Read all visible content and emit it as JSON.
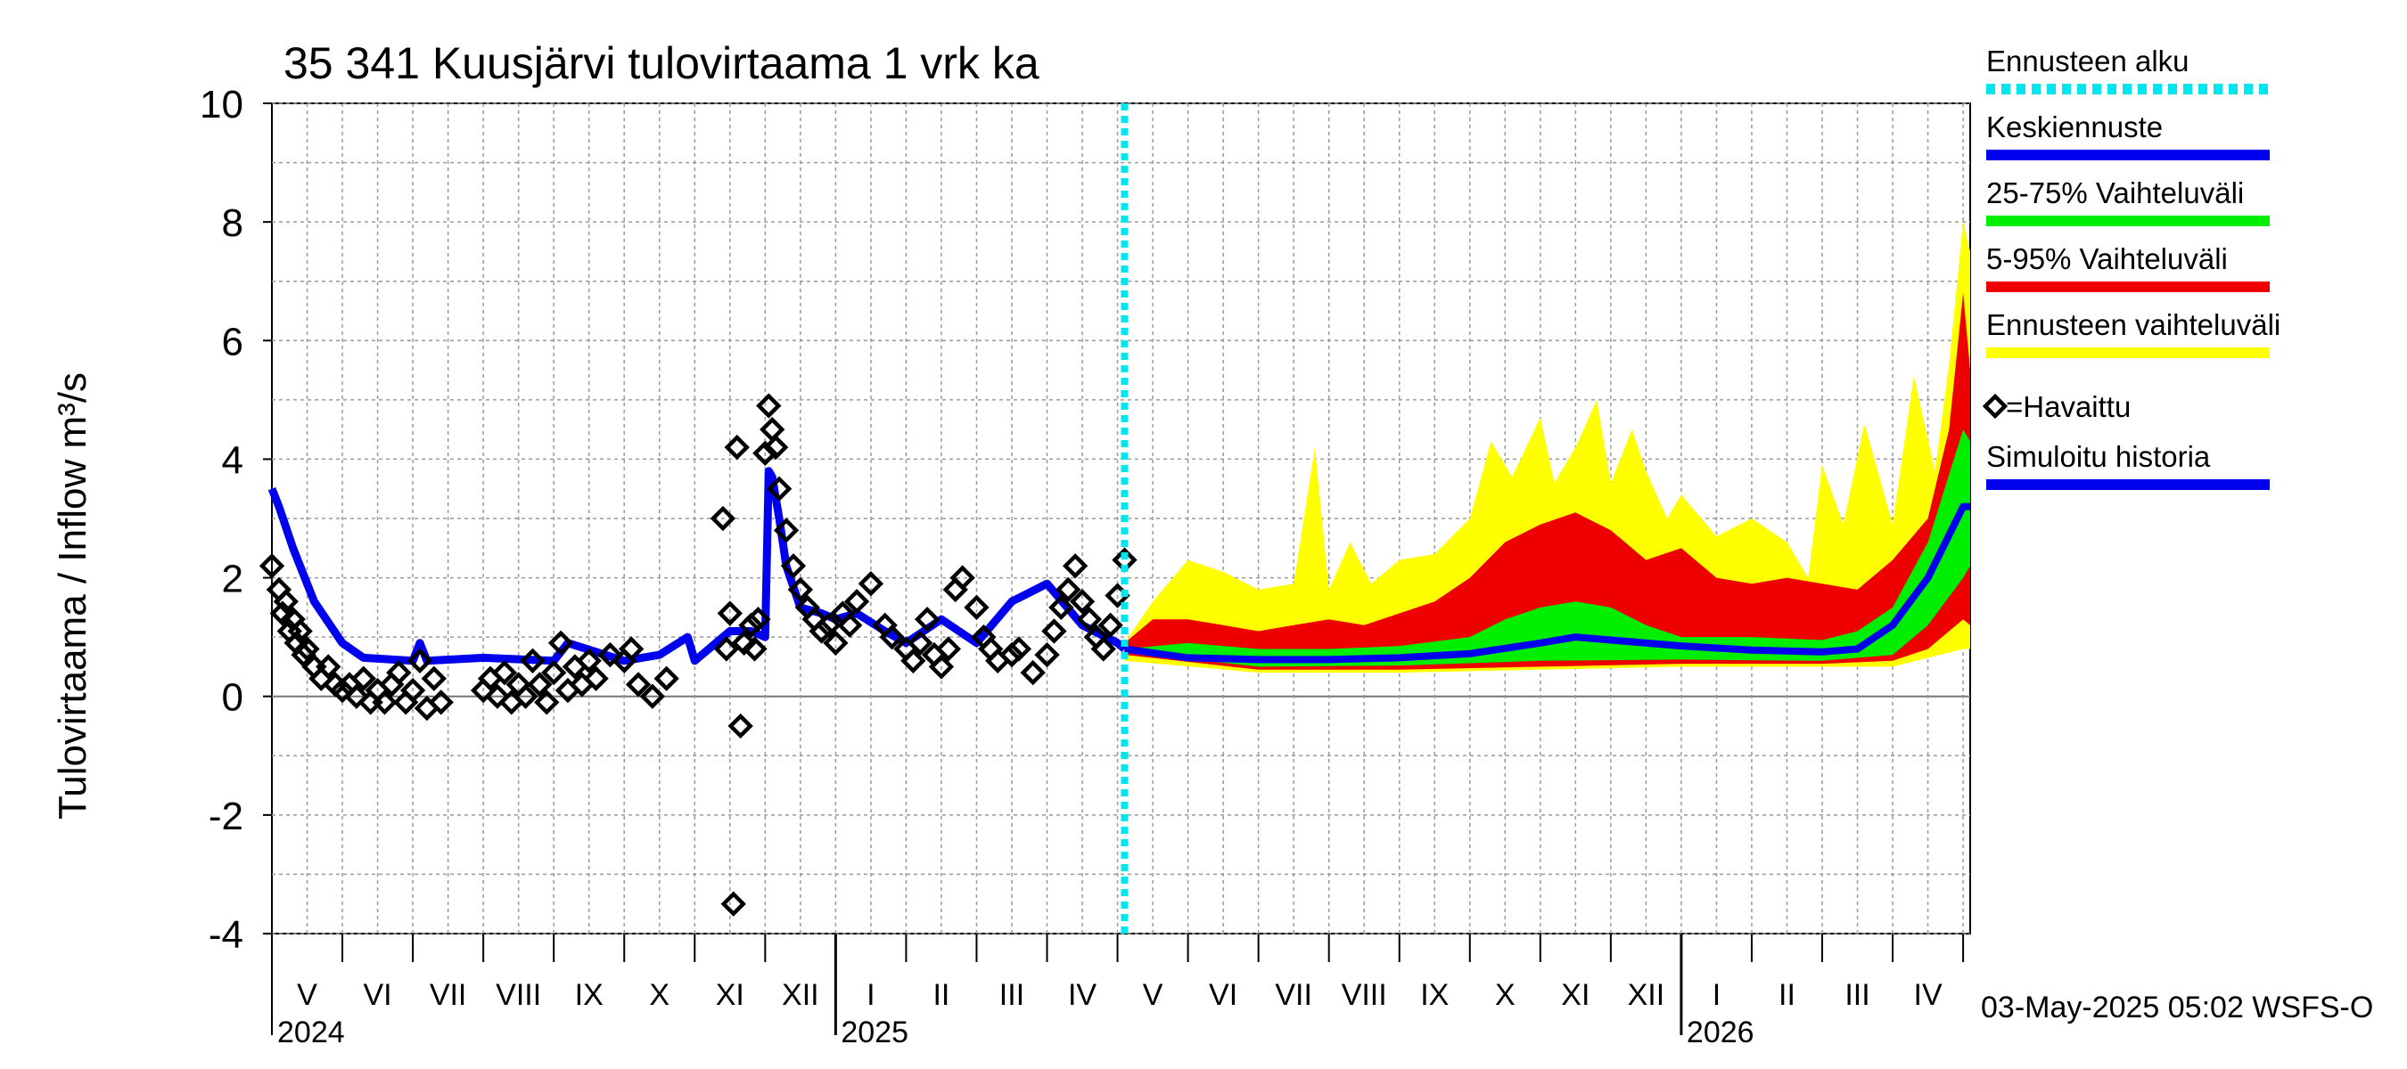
{
  "chart_data": {
    "type": "area",
    "title": "35 341 Kuusjärvi tulovirtaama 1 vrk ka",
    "ylabel": "Tulovirtaama / Inflow    m³/s",
    "ylim": [
      -4,
      10
    ],
    "yticks": [
      -4,
      -2,
      0,
      2,
      4,
      6,
      8,
      10
    ],
    "x_start_month_index": 0,
    "x_end_month_index": 24.1,
    "forecast_start": 12.1,
    "month_labels": [
      "V",
      "VI",
      "VII",
      "VIII",
      "IX",
      "X",
      "XI",
      "XII",
      "I",
      "II",
      "III",
      "IV",
      "V",
      "VI",
      "VII",
      "VIII",
      "IX",
      "X",
      "XI",
      "XII",
      "I",
      "II",
      "III",
      "IV"
    ],
    "year_labels": [
      {
        "label": "2024",
        "month_index": 0
      },
      {
        "label": "2025",
        "month_index": 8
      },
      {
        "label": "2026",
        "month_index": 20
      }
    ],
    "legend": [
      {
        "label": "Ennusteen alku",
        "color": "#00e5ee",
        "style": "dotted"
      },
      {
        "label": "Keskiennuste",
        "color": "#0000ee",
        "style": "line"
      },
      {
        "label": "25-75% Vaihteluväli",
        "color": "#00ee00",
        "style": "line"
      },
      {
        "label": "5-95% Vaihteluväli",
        "color": "#ee0000",
        "style": "line"
      },
      {
        "label": "Ennusteen vaihteluväli",
        "color": "#ffff00",
        "style": "line"
      },
      {
        "label": "=Havaittu",
        "color": "#000000",
        "style": "diamond"
      },
      {
        "label": "Simuloitu historia",
        "color": "#0000ee",
        "style": "line"
      }
    ],
    "footer": "03-May-2025 05:02 WSFS-O",
    "series": [
      {
        "name": "Simuloitu historia",
        "color": "#0000ee",
        "x": [
          0,
          0.1,
          0.3,
          0.6,
          1.0,
          1.3,
          2.0,
          2.1,
          2.2,
          3.0,
          4.0,
          4.2,
          5.0,
          5.5,
          5.9,
          6.0,
          6.5,
          6.8,
          7.0,
          7.05,
          7.1,
          7.2,
          7.3,
          7.5,
          7.8,
          8.0,
          8.3,
          8.7,
          9.0,
          9.5,
          10.0,
          10.5,
          11.0,
          11.5,
          12.0,
          12.1
        ],
        "y": [
          3.5,
          3.2,
          2.5,
          1.6,
          0.9,
          0.65,
          0.6,
          0.9,
          0.6,
          0.65,
          0.6,
          0.9,
          0.6,
          0.7,
          1.0,
          0.6,
          1.1,
          1.1,
          1.0,
          3.8,
          3.7,
          3.0,
          2.2,
          1.5,
          1.4,
          1.3,
          1.4,
          1.1,
          0.9,
          1.3,
          0.9,
          1.6,
          1.9,
          1.2,
          0.9,
          0.8
        ]
      },
      {
        "name": "Havaittu",
        "color": "#000000",
        "x": [
          0.0,
          0.1,
          0.15,
          0.2,
          0.25,
          0.3,
          0.35,
          0.4,
          0.45,
          0.5,
          0.6,
          0.7,
          0.8,
          0.9,
          1.0,
          1.1,
          1.2,
          1.3,
          1.4,
          1.5,
          1.6,
          1.7,
          1.8,
          1.9,
          2.0,
          2.1,
          2.2,
          2.3,
          2.4,
          3.0,
          3.1,
          3.2,
          3.3,
          3.4,
          3.5,
          3.6,
          3.7,
          3.8,
          3.9,
          4.0,
          4.1,
          4.2,
          4.3,
          4.4,
          4.5,
          4.6,
          4.8,
          5.0,
          5.1,
          5.2,
          5.4,
          5.6,
          6.4,
          6.45,
          6.5,
          6.55,
          6.6,
          6.65,
          6.7,
          6.8,
          6.85,
          6.9,
          7.0,
          7.05,
          7.1,
          7.15,
          7.2,
          7.3,
          7.4,
          7.5,
          7.6,
          7.7,
          7.8,
          7.9,
          8.0,
          8.1,
          8.2,
          8.3,
          8.5,
          8.7,
          8.8,
          9.0,
          9.1,
          9.2,
          9.3,
          9.4,
          9.5,
          9.6,
          9.7,
          9.8,
          10.0,
          10.1,
          10.2,
          10.3,
          10.5,
          10.6,
          10.8,
          11.0,
          11.1,
          11.2,
          11.3,
          11.4,
          11.5,
          11.6,
          11.7,
          11.8,
          11.9,
          12.0,
          12.1
        ],
        "y": [
          2.2,
          1.8,
          1.4,
          1.6,
          1.1,
          1.3,
          0.9,
          1.1,
          0.7,
          0.8,
          0.5,
          0.3,
          0.5,
          0.2,
          0.1,
          0.2,
          0.0,
          0.3,
          -0.1,
          0.1,
          -0.1,
          0.2,
          0.4,
          -0.1,
          0.1,
          0.6,
          -0.2,
          0.3,
          -0.1,
          0.1,
          0.3,
          0.0,
          0.4,
          -0.1,
          0.2,
          0.0,
          0.6,
          0.2,
          -0.1,
          0.4,
          0.9,
          0.1,
          0.5,
          0.2,
          0.6,
          0.3,
          0.7,
          0.6,
          0.8,
          0.2,
          0.0,
          0.3,
          3.0,
          0.8,
          1.4,
          -3.5,
          4.2,
          -0.5,
          0.9,
          1.2,
          0.8,
          1.3,
          4.1,
          4.9,
          4.5,
          4.2,
          3.5,
          2.8,
          2.2,
          1.8,
          1.5,
          1.3,
          1.1,
          1.2,
          0.9,
          1.4,
          1.2,
          1.6,
          1.9,
          1.2,
          1.0,
          0.8,
          0.6,
          0.9,
          1.3,
          0.7,
          0.5,
          0.8,
          1.8,
          2.0,
          1.5,
          1.0,
          0.8,
          0.6,
          0.7,
          0.8,
          0.4,
          0.7,
          1.1,
          1.5,
          1.8,
          2.2,
          1.6,
          1.3,
          1.0,
          0.8,
          1.2,
          1.7,
          2.3
        ],
        "note": "x measured in months from start of May 2024"
      },
      {
        "name": "Ennusteen vaihteluväli (max)",
        "color": "#ffff00",
        "x": [
          12.1,
          12.5,
          13.0,
          13.5,
          14.0,
          14.5,
          14.8,
          15.0,
          15.3,
          15.6,
          16.0,
          16.5,
          17.0,
          17.3,
          17.6,
          18.0,
          18.2,
          18.5,
          18.8,
          19.0,
          19.3,
          19.5,
          19.8,
          20.0,
          20.5,
          21.0,
          21.5,
          21.8,
          22.0,
          22.3,
          22.6,
          23.0,
          23.3,
          23.6,
          23.8,
          24.0,
          24.1
        ],
        "y": [
          0.9,
          1.6,
          2.3,
          2.1,
          1.8,
          1.9,
          4.2,
          1.8,
          2.6,
          1.9,
          2.3,
          2.4,
          3.0,
          4.3,
          3.7,
          4.7,
          3.6,
          4.2,
          5.0,
          3.6,
          4.5,
          3.8,
          3.0,
          3.4,
          2.7,
          3.0,
          2.6,
          2.0,
          3.9,
          2.9,
          4.6,
          2.9,
          5.4,
          3.8,
          5.6,
          8.0,
          7.5
        ]
      },
      {
        "name": "5-95% (upper)",
        "color": "#ee0000",
        "x": [
          12.1,
          12.5,
          13.0,
          13.5,
          14.0,
          14.5,
          15.0,
          15.5,
          16.0,
          16.5,
          17.0,
          17.5,
          18.0,
          18.5,
          19.0,
          19.5,
          20.0,
          20.5,
          21.0,
          21.5,
          22.0,
          22.5,
          23.0,
          23.5,
          23.8,
          24.0,
          24.1
        ],
        "y": [
          0.9,
          1.3,
          1.3,
          1.2,
          1.1,
          1.2,
          1.3,
          1.2,
          1.4,
          1.6,
          2.0,
          2.6,
          2.9,
          3.1,
          2.8,
          2.3,
          2.5,
          2.0,
          1.9,
          2.0,
          1.9,
          1.8,
          2.3,
          3.0,
          4.5,
          6.8,
          5.5
        ]
      },
      {
        "name": "25-75% (upper)",
        "color": "#00ee00",
        "x": [
          12.1,
          13.0,
          14.0,
          15.0,
          16.0,
          17.0,
          17.5,
          18.0,
          18.5,
          19.0,
          19.5,
          20.0,
          21.0,
          22.0,
          22.5,
          23.0,
          23.5,
          24.0,
          24.1
        ],
        "y": [
          0.8,
          0.9,
          0.8,
          0.8,
          0.85,
          1.0,
          1.3,
          1.5,
          1.6,
          1.5,
          1.2,
          1.0,
          1.0,
          0.95,
          1.1,
          1.5,
          2.6,
          4.5,
          4.3
        ]
      },
      {
        "name": "Keskiennuste",
        "color": "#0000ee",
        "x": [
          12.1,
          13.0,
          14.0,
          15.0,
          16.0,
          17.0,
          18.0,
          18.5,
          19.0,
          20.0,
          21.0,
          22.0,
          22.5,
          23.0,
          23.5,
          24.0,
          24.1
        ],
        "y": [
          0.8,
          0.65,
          0.62,
          0.62,
          0.65,
          0.72,
          0.9,
          1.0,
          0.95,
          0.85,
          0.78,
          0.75,
          0.8,
          1.2,
          2.0,
          3.2,
          3.2
        ]
      },
      {
        "name": "25-75% (lower)",
        "color": "#00ee00",
        "x": [
          12.1,
          14.0,
          16.0,
          18.0,
          20.0,
          22.0,
          23.0,
          23.5,
          24.0,
          24.1
        ],
        "y": [
          0.75,
          0.5,
          0.52,
          0.6,
          0.62,
          0.6,
          0.7,
          1.2,
          2.0,
          2.2
        ]
      },
      {
        "name": "5-95% (lower)",
        "color": "#ee0000",
        "x": [
          12.1,
          14.0,
          16.0,
          18.0,
          20.0,
          22.0,
          23.0,
          23.5,
          24.0,
          24.1
        ],
        "y": [
          0.7,
          0.45,
          0.45,
          0.5,
          0.55,
          0.55,
          0.6,
          0.8,
          1.3,
          1.2
        ]
      },
      {
        "name": "Ennusteen vaihteluväli (min)",
        "color": "#ffff00",
        "x": [
          12.1,
          14.0,
          16.0,
          18.0,
          20.0,
          22.0,
          23.0,
          24.0,
          24.1
        ],
        "y": [
          0.6,
          0.4,
          0.4,
          0.45,
          0.5,
          0.5,
          0.5,
          0.8,
          0.8
        ]
      }
    ]
  }
}
